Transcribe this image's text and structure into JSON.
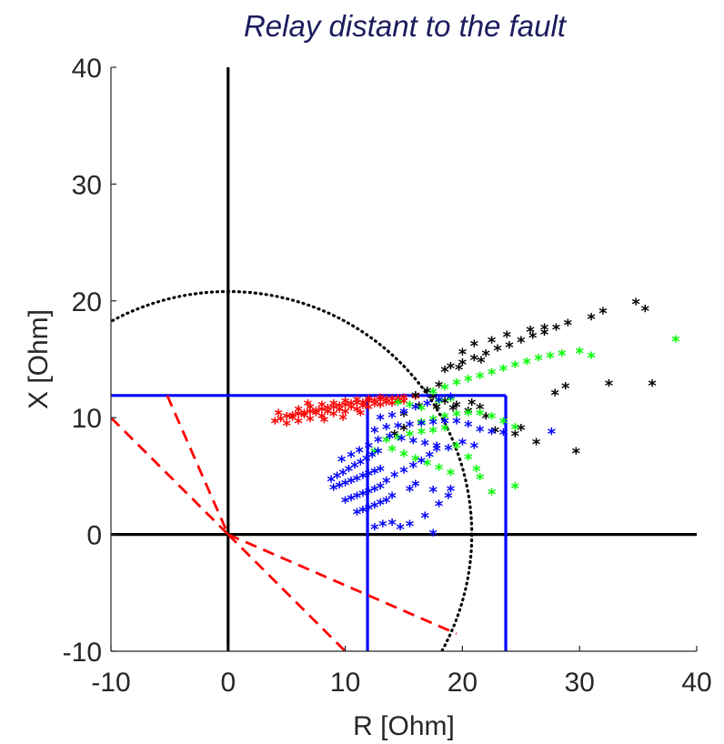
{
  "chart_data": {
    "type": "scatter",
    "title": "Relay distant to the fault",
    "xlabel": "R [Ohm]",
    "ylabel": "X [Ohm]",
    "xlim": [
      -10,
      40
    ],
    "ylim": [
      -10,
      40
    ],
    "xticks": [
      "-10",
      "0",
      "10",
      "20",
      "30",
      "40"
    ],
    "yticks": [
      "-10",
      "0",
      "10",
      "20",
      "30",
      "40"
    ],
    "grid": false,
    "legend": "none",
    "colors": {
      "red": "#ff0000",
      "black": "#000000",
      "green": "#00ff00",
      "blue": "#0000ff",
      "zone": "#0000ff",
      "axes": "#000000"
    },
    "reference_lines": [
      {
        "kind": "axis-cross",
        "color": "#000000",
        "segments": [
          [
            [
              -10,
              0
            ],
            [
              40,
              0
            ]
          ],
          [
            [
              0,
              -10
            ],
            [
              0,
              40
            ]
          ]
        ]
      },
      {
        "kind": "circle",
        "style": "dotted",
        "color": "#000000",
        "center": [
          0,
          0
        ],
        "radius": 20.8
      },
      {
        "kind": "zone",
        "color": "#0000ff",
        "segments": [
          [
            [
              -10,
              11.9
            ],
            [
              23.7,
              11.9
            ]
          ],
          [
            [
              11.9,
              -10
            ],
            [
              11.9,
              11.9
            ]
          ],
          [
            [
              23.7,
              -10
            ],
            [
              23.7,
              11.9
            ]
          ]
        ]
      },
      {
        "kind": "blinder",
        "style": "dashed",
        "color": "#ff0000",
        "segments": [
          [
            [
              -10,
              10
            ],
            [
              0,
              0
            ]
          ],
          [
            [
              -5.2,
              11.9
            ],
            [
              0,
              0
            ]
          ],
          [
            [
              0,
              0
            ],
            [
              10,
              -10
            ]
          ],
          [
            [
              0,
              0
            ],
            [
              19.5,
              -8.5
            ]
          ]
        ]
      }
    ],
    "series": [
      {
        "color": "#ff0000",
        "marker": "*",
        "points": [
          [
            4,
            9.6
          ],
          [
            4.5,
            9.8
          ],
          [
            5,
            10
          ],
          [
            5.5,
            10.1
          ],
          [
            6,
            10.2
          ],
          [
            6.5,
            10.3
          ],
          [
            7,
            10.4
          ],
          [
            7.5,
            10.5
          ],
          [
            8,
            10.6
          ],
          [
            8.5,
            10.7
          ],
          [
            9,
            10.8
          ],
          [
            9.5,
            10.9
          ],
          [
            10,
            11
          ],
          [
            10.5,
            11.1
          ],
          [
            11,
            11.15
          ],
          [
            11.5,
            11.2
          ],
          [
            12,
            11.3
          ],
          [
            12.5,
            11.35
          ],
          [
            13,
            11.4
          ],
          [
            13.5,
            11.45
          ],
          [
            14,
            11.5
          ],
          [
            14.5,
            11.55
          ],
          [
            15,
            11.6
          ],
          [
            5,
            9.4
          ],
          [
            6,
            9.6
          ],
          [
            7,
            9.8
          ],
          [
            8,
            10
          ],
          [
            9,
            10.2
          ],
          [
            10,
            10.4
          ],
          [
            11,
            10.6
          ],
          [
            12,
            10.8
          ],
          [
            13,
            11
          ],
          [
            14,
            11.1
          ],
          [
            15,
            11.3
          ],
          [
            6,
            10.6
          ],
          [
            7,
            10.8
          ],
          [
            8,
            11
          ],
          [
            9,
            11.1
          ],
          [
            10,
            11.3
          ],
          [
            11,
            11.4
          ],
          [
            12,
            11.5
          ],
          [
            13,
            11.6
          ],
          [
            5.5,
            9.9
          ],
          [
            6.5,
            10.1
          ],
          [
            7.5,
            10.3
          ],
          [
            8.5,
            10.4
          ],
          [
            9.5,
            10.6
          ],
          [
            10.5,
            10.8
          ],
          [
            11.5,
            10.9
          ],
          [
            12.5,
            11.05
          ],
          [
            13.5,
            11.2
          ],
          [
            14.5,
            11.3
          ],
          [
            4.3,
            10.3
          ],
          [
            6.8,
            11.1
          ],
          [
            8.2,
            9.7
          ],
          [
            9.8,
            9.9
          ],
          [
            11.3,
            10.3
          ],
          [
            16,
            11.7
          ]
        ]
      },
      {
        "color": "#000000",
        "marker": "*",
        "points": [
          [
            16,
            11.8
          ],
          [
            17,
            12.2
          ],
          [
            18,
            12.7
          ],
          [
            18.5,
            14
          ],
          [
            19,
            14.3
          ],
          [
            20,
            14.6
          ],
          [
            21,
            15
          ],
          [
            22,
            15.4
          ],
          [
            23,
            15.8
          ],
          [
            24,
            16.1
          ],
          [
            25,
            16.5
          ],
          [
            26,
            16.9
          ],
          [
            27,
            17.2
          ],
          [
            28,
            17.6
          ],
          [
            29,
            18
          ],
          [
            31,
            18.5
          ],
          [
            32,
            19
          ],
          [
            34.8,
            19.8
          ],
          [
            35.6,
            19.2
          ],
          [
            36.2,
            12.8
          ],
          [
            28.8,
            12.6
          ],
          [
            27.9,
            12
          ],
          [
            29.7,
            7
          ],
          [
            32.5,
            12.8
          ],
          [
            25,
            9
          ],
          [
            26.3,
            7.8
          ],
          [
            24.5,
            8.5
          ],
          [
            22,
            10
          ],
          [
            20.5,
            10.5
          ],
          [
            19.5,
            11
          ],
          [
            18.5,
            11.3
          ],
          [
            17.5,
            11.7
          ],
          [
            15,
            10.2
          ],
          [
            16.3,
            10.9
          ],
          [
            17.8,
            10.8
          ],
          [
            19.2,
            10.7
          ],
          [
            20.8,
            11.2
          ],
          [
            21.5,
            10.8
          ],
          [
            14.2,
            8.5
          ],
          [
            15,
            9
          ],
          [
            22.8,
            8.8
          ],
          [
            21,
            16.2
          ],
          [
            22.5,
            16.5
          ],
          [
            23.8,
            17
          ],
          [
            25.8,
            17.4
          ],
          [
            27,
            17.6
          ],
          [
            20,
            15.5
          ],
          [
            19.7,
            14.2
          ],
          [
            21.6,
            14.8
          ]
        ]
      },
      {
        "color": "#00ff00",
        "marker": "*",
        "points": [
          [
            17.5,
            12.1
          ],
          [
            18.5,
            12.5
          ],
          [
            19.5,
            12.9
          ],
          [
            20.5,
            13.2
          ],
          [
            21.5,
            13.5
          ],
          [
            22.5,
            13.8
          ],
          [
            23.5,
            14.1
          ],
          [
            24.5,
            14.4
          ],
          [
            25.5,
            14.7
          ],
          [
            26.5,
            15
          ],
          [
            27.5,
            15.2
          ],
          [
            28.5,
            15.4
          ],
          [
            30,
            15.6
          ],
          [
            31,
            15.2
          ],
          [
            38.2,
            16.6
          ],
          [
            16.5,
            9.5
          ],
          [
            17.5,
            9.8
          ],
          [
            18.5,
            10
          ],
          [
            19.5,
            10.2
          ],
          [
            20.5,
            10.3
          ],
          [
            21.5,
            10.3
          ],
          [
            22.5,
            10
          ],
          [
            23.5,
            9.6
          ],
          [
            24.5,
            9.1
          ],
          [
            13.5,
            8
          ],
          [
            14.5,
            8.2
          ],
          [
            15.5,
            8.5
          ],
          [
            16.5,
            8.7
          ],
          [
            17.5,
            8.8
          ],
          [
            18.5,
            9
          ],
          [
            19.5,
            7.5
          ],
          [
            20.5,
            6.5
          ],
          [
            21.2,
            5.5
          ],
          [
            21.5,
            4.8
          ],
          [
            22.5,
            3.5
          ],
          [
            24.5,
            4
          ],
          [
            12.5,
            7
          ],
          [
            14,
            7.2
          ],
          [
            15,
            6.8
          ],
          [
            16,
            6.4
          ],
          [
            17,
            6
          ],
          [
            18,
            5.6
          ],
          [
            19,
            5.2
          ],
          [
            16.5,
            10.7
          ],
          [
            15.5,
            11
          ],
          [
            14.5,
            11.2
          ],
          [
            18,
            11.3
          ],
          [
            19,
            11.5
          ]
        ]
      },
      {
        "color": "#0000ff",
        "marker": "*",
        "points": [
          [
            8.8,
            4.6
          ],
          [
            9.3,
            4.9
          ],
          [
            9.8,
            5.2
          ],
          [
            10.3,
            5.5
          ],
          [
            10.8,
            5.8
          ],
          [
            11.3,
            6.1
          ],
          [
            11.8,
            6.4
          ],
          [
            12.3,
            6.7
          ],
          [
            12.8,
            7
          ],
          [
            9,
            3.9
          ],
          [
            9.5,
            4.1
          ],
          [
            10,
            4.3
          ],
          [
            10.5,
            4.5
          ],
          [
            11,
            4.7
          ],
          [
            11.5,
            4.9
          ],
          [
            12,
            5.1
          ],
          [
            12.5,
            5.3
          ],
          [
            13,
            5.5
          ],
          [
            10,
            2.8
          ],
          [
            10.5,
            3
          ],
          [
            11,
            3.2
          ],
          [
            11.5,
            3.4
          ],
          [
            12,
            3.6
          ],
          [
            12.5,
            3.8
          ],
          [
            13,
            4
          ],
          [
            11,
            1.8
          ],
          [
            11.5,
            2
          ],
          [
            12,
            2.2
          ],
          [
            12.5,
            2.4
          ],
          [
            13,
            2.6
          ],
          [
            13.5,
            2.8
          ],
          [
            12.5,
            0.5
          ],
          [
            13.2,
            0.8
          ],
          [
            14,
            0.9
          ],
          [
            14.7,
            0.5
          ],
          [
            15.5,
            0.8
          ],
          [
            16.8,
            1.5
          ],
          [
            17.5,
            0
          ],
          [
            18,
            2.5
          ],
          [
            18.8,
            3.2
          ],
          [
            19,
            3.8
          ],
          [
            17.5,
            3.7
          ],
          [
            16,
            4.2
          ],
          [
            15.5,
            3.8
          ],
          [
            14,
            3.2
          ],
          [
            13.5,
            4.5
          ],
          [
            14.2,
            5
          ],
          [
            15,
            5.4
          ],
          [
            15.8,
            5.8
          ],
          [
            16.5,
            6.2
          ],
          [
            17.2,
            6.7
          ],
          [
            17.8,
            7.2
          ],
          [
            12.5,
            8.8
          ],
          [
            13.5,
            9.1
          ],
          [
            14.5,
            9.2
          ],
          [
            15.5,
            9.3
          ],
          [
            16.5,
            9.4
          ],
          [
            17.5,
            9.5
          ],
          [
            18.5,
            9.6
          ],
          [
            19.5,
            9.6
          ],
          [
            20.5,
            9.3
          ],
          [
            21.5,
            8.9
          ],
          [
            22.5,
            8.7
          ],
          [
            23.5,
            8.6
          ],
          [
            27.6,
            8.7
          ],
          [
            13,
            9.9
          ],
          [
            14,
            10.1
          ],
          [
            15,
            10.4
          ],
          [
            16,
            10.8
          ],
          [
            17,
            11.1
          ],
          [
            18,
            11.4
          ],
          [
            19,
            11.7
          ],
          [
            12.8,
            8
          ],
          [
            13.8,
            8.3
          ],
          [
            14.8,
            8.1
          ],
          [
            15.8,
            7.9
          ],
          [
            16.8,
            7.7
          ],
          [
            17.8,
            7.5
          ],
          [
            18.8,
            7.3
          ],
          [
            20,
            7.8
          ],
          [
            21,
            7.5
          ],
          [
            9.7,
            6.3
          ],
          [
            10.5,
            6.7
          ],
          [
            11.2,
            7.1
          ],
          [
            12,
            7.5
          ]
        ]
      }
    ]
  }
}
